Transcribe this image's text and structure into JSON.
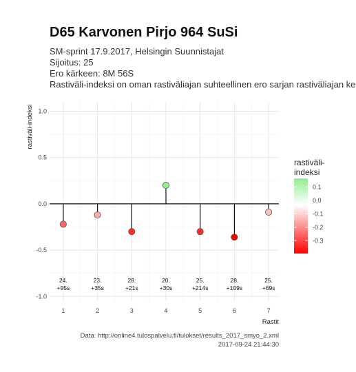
{
  "title": "D65 Karvonen Pirjo 964 SuSi",
  "subtitle_lines": [
    "SM-sprint 17.9.2017, Helsingin Suunnistajat",
    "Sijoitus: 25",
    "Ero kärkeen: 8M 56S",
    "Rastiväli-indeksi on oman rastiväliajan suhteellinen ero sarjan rastiväliajan kes"
  ],
  "caption_lines": [
    "Data: http://online4.tulospalvelu.fi/tulokset/results_2017_smyo_2.xml",
    "2017-09-24 21:44:30"
  ],
  "chart_data": {
    "type": "lollipop",
    "x": [
      1,
      2,
      3,
      4,
      5,
      6,
      7
    ],
    "values": [
      -0.22,
      -0.12,
      -0.3,
      0.2,
      -0.3,
      -0.36,
      -0.09
    ],
    "annotations": [
      [
        "24.",
        "+95s"
      ],
      [
        "23.",
        "+35s"
      ],
      [
        "28.",
        "+21s"
      ],
      [
        "20.",
        "+30s"
      ],
      [
        "25.",
        "+214s"
      ],
      [
        "28.",
        "+109s"
      ],
      [
        "25.",
        "+69s"
      ]
    ],
    "xlabel": "Rastit",
    "ylabel": "rastiväli-indeksi",
    "ylim": [
      -1.0,
      1.0
    ],
    "xlim": [
      0.6,
      7.3
    ],
    "yticks": [
      1.0,
      0.5,
      0.0,
      -0.5,
      -1.0
    ],
    "ytick_labels": [
      "1.0",
      "0.5",
      "0.0",
      "-0.5",
      "-1.0"
    ],
    "xtick_labels": [
      "1",
      "2",
      "3",
      "4",
      "5",
      "6",
      "7"
    ],
    "grid": true,
    "legend": {
      "title_lines": [
        "rastiväli-",
        "indeksi"
      ],
      "placement": "right",
      "color_scale": {
        "low": "#ff0000",
        "mid": "#ffffff",
        "high": "#90ee90",
        "low_value": -0.36,
        "high_value": 0.2
      },
      "tick_values": [
        0.1,
        0.0,
        -0.1,
        -0.2,
        -0.3
      ],
      "tick_labels": [
        "0.1",
        "0.0",
        "-0.1",
        "-0.2",
        "-0.3"
      ]
    }
  }
}
